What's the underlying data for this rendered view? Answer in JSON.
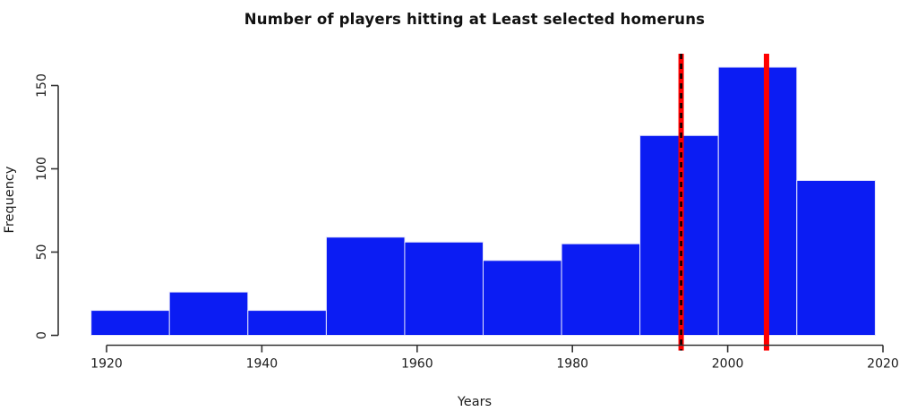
{
  "figure": {
    "background": "#ffffff"
  },
  "chart_data": {
    "type": "histogram",
    "title": "Number of players hitting at Least selected homeruns",
    "xlabel": "Years",
    "ylabel": "Frequency",
    "bin_edges": [
      1918,
      1928.1,
      1938.2,
      1948.3,
      1958.4,
      1968.5,
      1978.6,
      1988.7,
      1998.8,
      2008.9,
      2019
    ],
    "counts": [
      15,
      26,
      15,
      59,
      56,
      45,
      55,
      120,
      161,
      93
    ],
    "xticks": [
      1920,
      1940,
      1960,
      1980,
      2000,
      2020
    ],
    "yticks": [
      0,
      50,
      100,
      150
    ],
    "xlim": [
      1918,
      2020
    ],
    "ylim": [
      0,
      165
    ],
    "grid": false,
    "legend": null,
    "bar_fill": "#0b1cf3",
    "bar_border": "#e6e6fa",
    "axis_color": "#333333",
    "text_color": "#1a1a1a",
    "vlines": [
      {
        "x": 1994,
        "color": "#ff0000",
        "style": "solid",
        "width": 6
      },
      {
        "x": 1994,
        "color": "#000000",
        "style": "dashed",
        "width": 2.5
      },
      {
        "x": 2005,
        "color": "#ff0000",
        "style": "solid",
        "width": 6
      }
    ]
  }
}
